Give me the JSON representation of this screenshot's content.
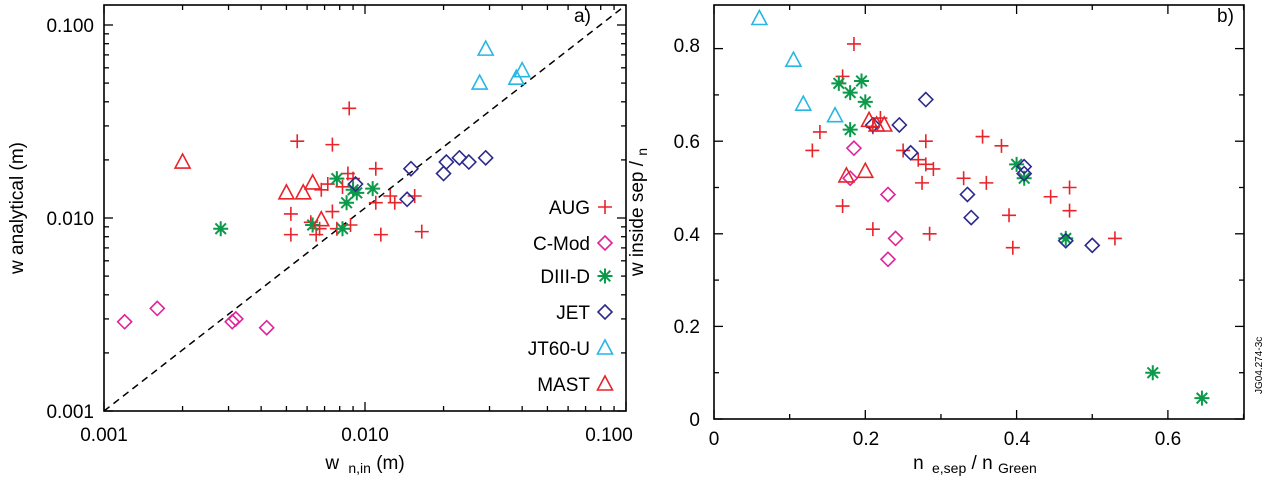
{
  "figure_id": "JG04.274-3c",
  "chart_data": [
    {
      "type": "scatter",
      "panel_label": "a)",
      "xscale": "log",
      "yscale": "log",
      "xlim": [
        0.001,
        0.1
      ],
      "ylim": [
        0.001,
        0.13
      ],
      "xticks": [
        "0.001",
        "0.010",
        "0.100"
      ],
      "yticks": [
        "0.001",
        "0.010",
        "0.100"
      ],
      "xlabel": {
        "main": "w",
        "subscript": "n,in",
        "suffix": "(m)"
      },
      "ylabel": "w analytical (m)",
      "reference_line": "y = x (dashed)",
      "legend_position": "right",
      "series": [
        {
          "name": "AUG",
          "marker": "plus",
          "color": "#e8232a",
          "points": [
            [
              0.0055,
              0.025
            ],
            [
              0.0075,
              0.024
            ],
            [
              0.0087,
              0.037
            ],
            [
              0.0052,
              0.0105
            ],
            [
              0.0062,
              0.0095
            ],
            [
              0.0065,
              0.0082
            ],
            [
              0.0067,
              0.0088
            ],
            [
              0.0052,
              0.0082
            ],
            [
              0.0068,
              0.014
            ],
            [
              0.0072,
              0.015
            ],
            [
              0.0078,
              0.016
            ],
            [
              0.0082,
              0.0145
            ],
            [
              0.0086,
              0.017
            ],
            [
              0.009,
              0.016
            ],
            [
              0.0078,
              0.0088
            ],
            [
              0.0088,
              0.0092
            ],
            [
              0.011,
              0.018
            ],
            [
              0.011,
              0.012
            ],
            [
              0.0115,
              0.0082
            ],
            [
              0.0125,
              0.013
            ],
            [
              0.013,
              0.012
            ],
            [
              0.0155,
              0.013
            ],
            [
              0.0165,
              0.0085
            ],
            [
              0.0075,
              0.0108
            ]
          ]
        },
        {
          "name": "C-Mod",
          "marker": "diamond",
          "color": "#e0229b",
          "points": [
            [
              0.0012,
              0.0029
            ],
            [
              0.0016,
              0.0034
            ],
            [
              0.0031,
              0.0029
            ],
            [
              0.0032,
              0.003
            ],
            [
              0.0042,
              0.0027
            ]
          ]
        },
        {
          "name": "DIII-D",
          "marker": "asterisk",
          "color": "#0a9a4a",
          "points": [
            [
              0.0028,
              0.0088
            ],
            [
              0.0063,
              0.0092
            ],
            [
              0.0078,
              0.016
            ],
            [
              0.0082,
              0.0088
            ],
            [
              0.0085,
              0.012
            ],
            [
              0.009,
              0.014
            ],
            [
              0.0093,
              0.0135
            ],
            [
              0.0107,
              0.0142
            ]
          ]
        },
        {
          "name": "JET",
          "marker": "diamond",
          "color": "#2b2a8c",
          "points": [
            [
              0.0092,
              0.015
            ],
            [
              0.0145,
              0.0125
            ],
            [
              0.015,
              0.018
            ],
            [
              0.02,
              0.017
            ],
            [
              0.0205,
              0.0195
            ],
            [
              0.023,
              0.0205
            ],
            [
              0.025,
              0.0195
            ],
            [
              0.029,
              0.0205
            ]
          ]
        },
        {
          "name": "JT60-U",
          "marker": "triangle",
          "color": "#27b7e4",
          "points": [
            [
              0.0275,
              0.05
            ],
            [
              0.029,
              0.075
            ],
            [
              0.038,
              0.053
            ],
            [
              0.04,
              0.058
            ]
          ]
        },
        {
          "name": "MAST",
          "marker": "triangle",
          "color": "#e8232a",
          "points": [
            [
              0.002,
              0.0195
            ],
            [
              0.005,
              0.0135
            ],
            [
              0.0058,
              0.0135
            ],
            [
              0.0063,
              0.0152
            ],
            [
              0.0068,
              0.0098
            ]
          ]
        }
      ]
    },
    {
      "type": "scatter",
      "panel_label": "b)",
      "xlim": [
        0,
        0.7
      ],
      "ylim": [
        0,
        0.88
      ],
      "xticks": [
        "0",
        "0.2",
        "0.4",
        "0.6"
      ],
      "yticks": [
        "0",
        "0.2",
        "0.4",
        "0.6",
        "0.8"
      ],
      "xlabel": {
        "a": "n",
        "a_sub": "e,sep",
        "mid": " / n",
        "b_sub": "Green"
      },
      "ylabel": {
        "main": "w inside sep / ",
        "subscript": "n"
      },
      "series": [
        {
          "name": "AUG",
          "marker": "plus",
          "color": "#e8232a",
          "points": [
            [
              0.185,
              0.81
            ],
            [
              0.17,
              0.74
            ],
            [
              0.14,
              0.62
            ],
            [
              0.13,
              0.58
            ],
            [
              0.17,
              0.46
            ],
            [
              0.21,
              0.63
            ],
            [
              0.22,
              0.65
            ],
            [
              0.25,
              0.58
            ],
            [
              0.27,
              0.56
            ],
            [
              0.28,
              0.6
            ],
            [
              0.28,
              0.55
            ],
            [
              0.29,
              0.54
            ],
            [
              0.275,
              0.51
            ],
            [
              0.21,
              0.41
            ],
            [
              0.285,
              0.4
            ],
            [
              0.355,
              0.61
            ],
            [
              0.38,
              0.59
            ],
            [
              0.33,
              0.52
            ],
            [
              0.36,
              0.51
            ],
            [
              0.39,
              0.44
            ],
            [
              0.395,
              0.37
            ],
            [
              0.445,
              0.48
            ],
            [
              0.47,
              0.5
            ],
            [
              0.47,
              0.45
            ],
            [
              0.53,
              0.39
            ]
          ]
        },
        {
          "name": "C-Mod",
          "marker": "diamond",
          "color": "#e0229b",
          "points": [
            [
              0.18,
              0.52
            ],
            [
              0.185,
              0.585
            ],
            [
              0.23,
              0.485
            ],
            [
              0.24,
              0.39
            ],
            [
              0.23,
              0.345
            ]
          ]
        },
        {
          "name": "DIII-D",
          "marker": "asterisk",
          "color": "#0a9a4a",
          "points": [
            [
              0.165,
              0.725
            ],
            [
              0.18,
              0.705
            ],
            [
              0.195,
              0.73
            ],
            [
              0.2,
              0.685
            ],
            [
              0.18,
              0.625
            ],
            [
              0.4,
              0.55
            ],
            [
              0.41,
              0.52
            ],
            [
              0.465,
              0.39
            ],
            [
              0.58,
              0.1
            ],
            [
              0.645,
              0.045
            ]
          ]
        },
        {
          "name": "JET",
          "marker": "diamond",
          "color": "#2b2a8c",
          "points": [
            [
              0.28,
              0.69
            ],
            [
              0.245,
              0.635
            ],
            [
              0.21,
              0.635
            ],
            [
              0.26,
              0.575
            ],
            [
              0.335,
              0.485
            ],
            [
              0.34,
              0.435
            ],
            [
              0.41,
              0.545
            ],
            [
              0.41,
              0.53
            ],
            [
              0.465,
              0.385
            ],
            [
              0.5,
              0.375
            ]
          ]
        },
        {
          "name": "JT60-U",
          "marker": "triangle",
          "color": "#27b7e4",
          "points": [
            [
              0.06,
              0.865
            ],
            [
              0.105,
              0.775
            ],
            [
              0.118,
              0.68
            ],
            [
              0.16,
              0.655
            ]
          ]
        },
        {
          "name": "MAST",
          "marker": "triangle",
          "color": "#e8232a",
          "points": [
            [
              0.175,
              0.525
            ],
            [
              0.2,
              0.535
            ],
            [
              0.205,
              0.645
            ],
            [
              0.215,
              0.635
            ],
            [
              0.225,
              0.635
            ]
          ]
        }
      ]
    }
  ]
}
